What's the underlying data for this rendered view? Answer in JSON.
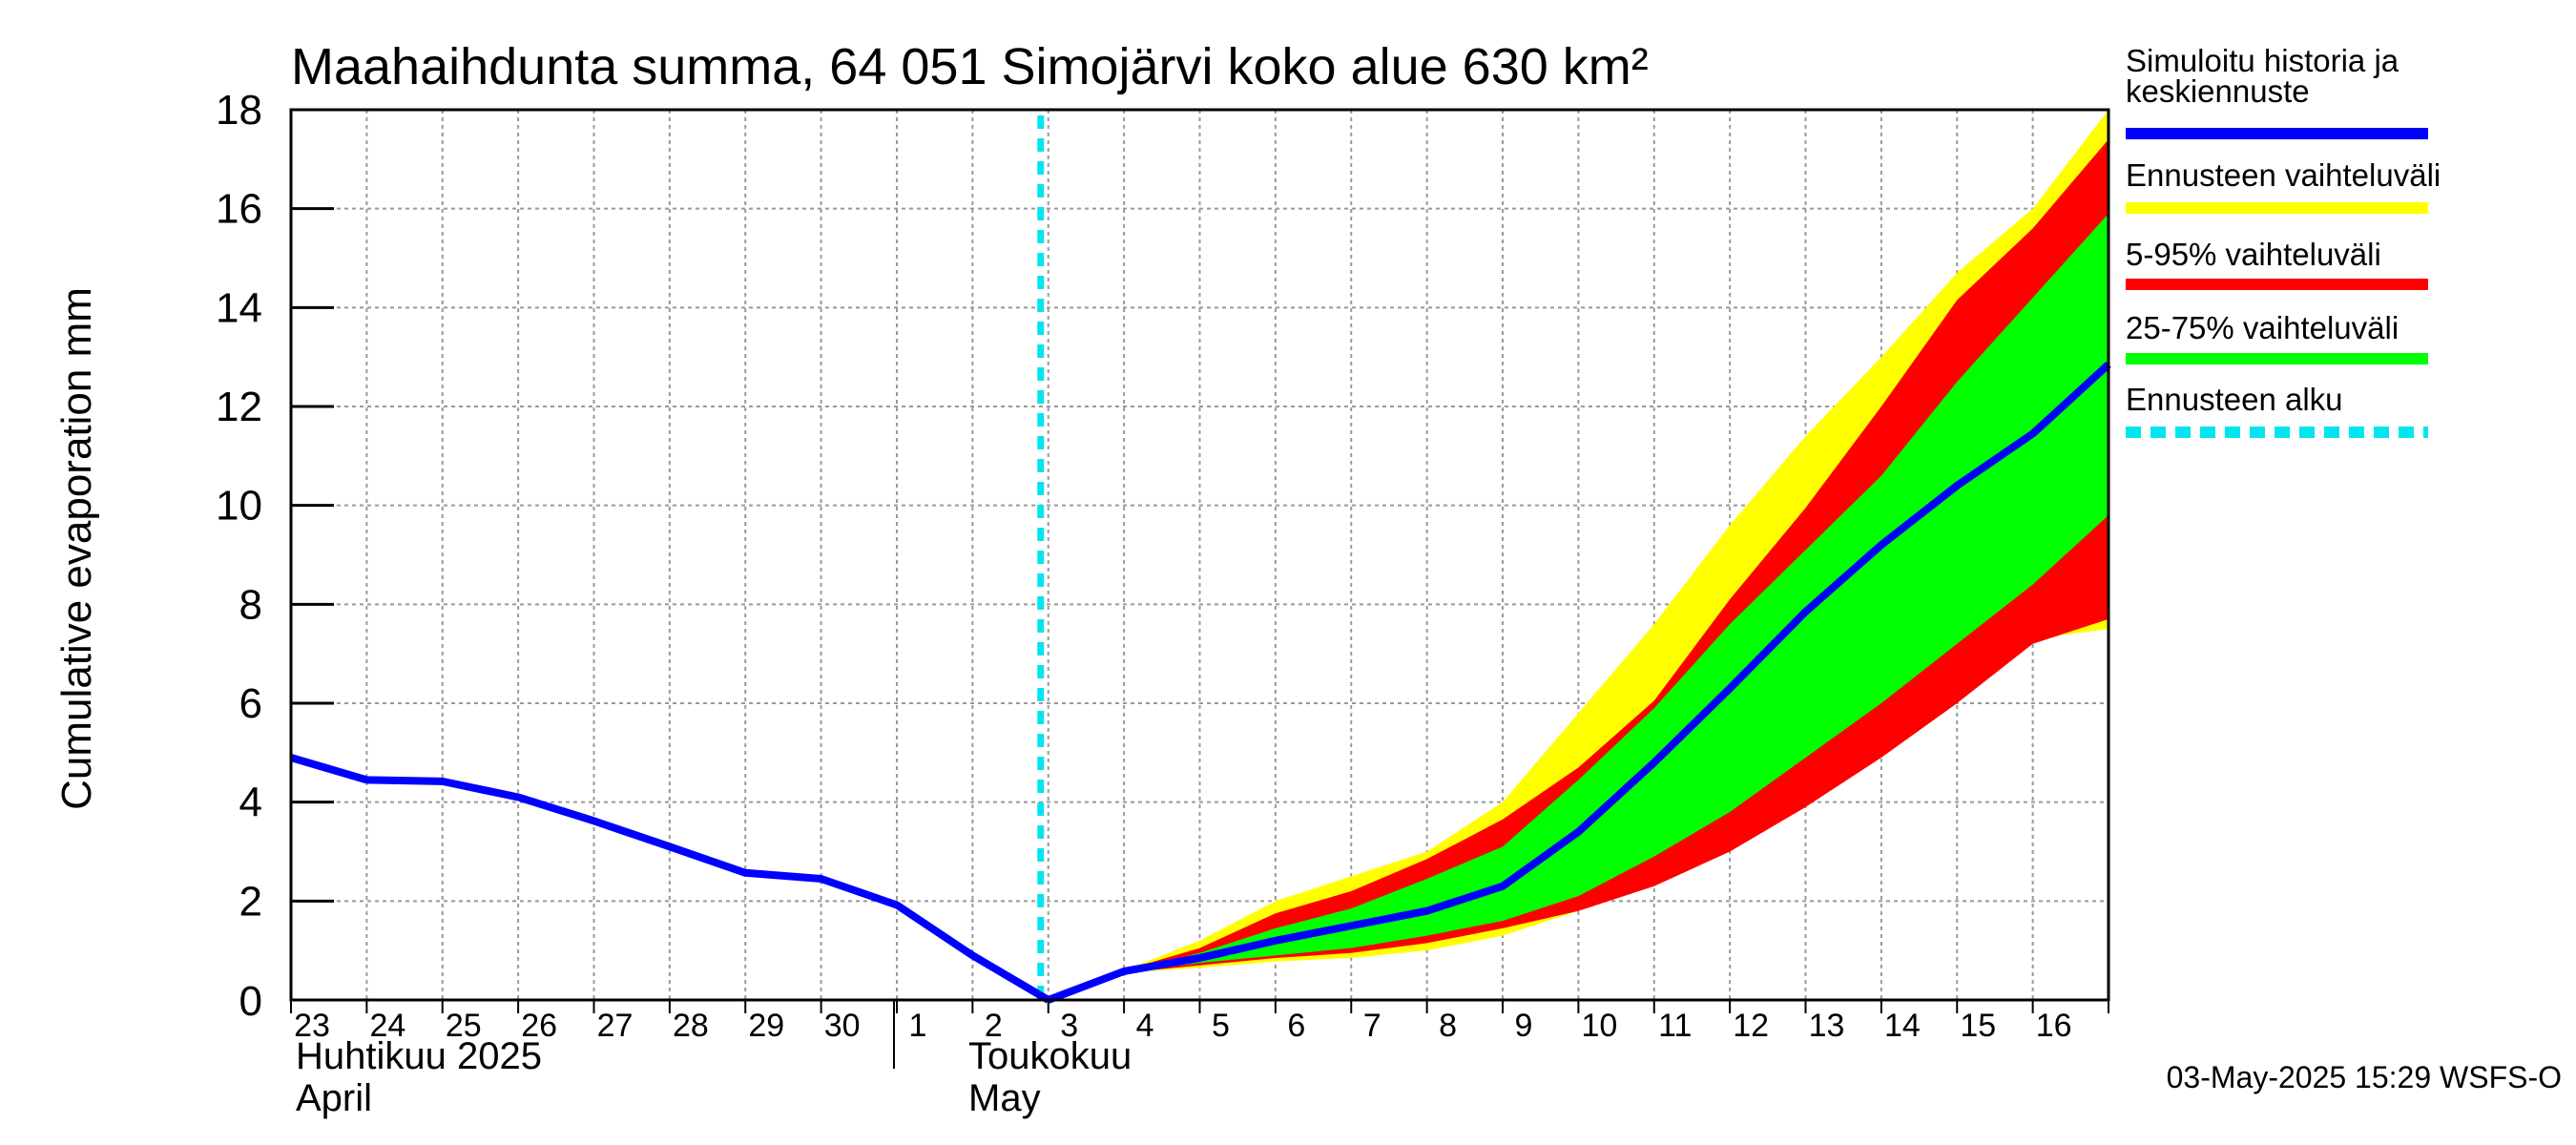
{
  "chart_data": {
    "type": "area",
    "title": "Maahaihdunta summa, 64 051 Simojärvi koko alue 630 km²",
    "ylabel": "Cumulative evaporation   mm",
    "ylim": [
      0,
      18
    ],
    "yticks": [
      0,
      2,
      4,
      6,
      8,
      10,
      12,
      14,
      16,
      18
    ],
    "x_day_range": [
      0,
      24
    ],
    "x_tick_labels": [
      "23",
      "24",
      "25",
      "26",
      "27",
      "28",
      "29",
      "30",
      "1",
      "2",
      "3",
      "4",
      "5",
      "6",
      "7",
      "8",
      "9",
      "10",
      "11",
      "12",
      "13",
      "14",
      "15",
      "16"
    ],
    "months": [
      {
        "line1": "Huhtikuu  2025",
        "line2": "April",
        "start_day": 0
      },
      {
        "line1": "Toukokuu",
        "line2": "May",
        "start_day": 8
      }
    ],
    "forecast_start_day": 10,
    "history": {
      "x": [
        0,
        1,
        2,
        3,
        4,
        5,
        6,
        7,
        8,
        9,
        10
      ],
      "y": [
        4.9,
        4.45,
        4.42,
        4.1,
        3.62,
        3.1,
        2.57,
        2.45,
        1.92,
        0.9,
        0.0
      ]
    },
    "forecast_x": [
      10,
      11,
      12,
      13,
      14,
      15,
      16,
      17,
      18,
      19,
      20,
      21,
      22,
      23,
      24
    ],
    "bands": {
      "full_range": {
        "low": [
          0.0,
          0.55,
          0.65,
          0.78,
          0.85,
          1.0,
          1.3,
          1.8,
          2.5,
          3.3,
          4.1,
          5.2,
          6.2,
          7.3,
          7.5
        ],
        "high": [
          0.0,
          0.6,
          1.2,
          2.0,
          2.5,
          3.0,
          4.0,
          5.8,
          7.6,
          9.6,
          11.4,
          13.0,
          14.7,
          16.0,
          18.0
        ]
      },
      "p5_95": {
        "low": [
          0.0,
          0.55,
          0.7,
          0.85,
          0.95,
          1.15,
          1.45,
          1.8,
          2.3,
          3.0,
          3.9,
          4.9,
          6.0,
          7.2,
          7.7
        ],
        "high": [
          0.0,
          0.6,
          1.05,
          1.75,
          2.2,
          2.85,
          3.65,
          4.7,
          6.05,
          8.1,
          9.95,
          12.0,
          14.15,
          15.6,
          17.4
        ]
      },
      "p25_75": {
        "low": [
          0.0,
          0.55,
          0.75,
          0.9,
          1.05,
          1.3,
          1.6,
          2.1,
          2.9,
          3.8,
          4.9,
          6.0,
          7.2,
          8.4,
          9.8
        ],
        "high": [
          0.0,
          0.58,
          0.95,
          1.45,
          1.85,
          2.45,
          3.1,
          4.45,
          5.9,
          7.6,
          9.1,
          10.6,
          12.5,
          14.2,
          15.9
        ]
      }
    },
    "median": [
      0.0,
      0.58,
      0.85,
      1.2,
      1.5,
      1.8,
      2.3,
      3.4,
      4.8,
      6.3,
      7.85,
      9.2,
      10.4,
      11.45,
      12.85
    ],
    "legend": [
      {
        "label": "Simuloitu historia ja\nkeskiennuste",
        "color": "#0000ff",
        "style": "solid"
      },
      {
        "label": "Ennusteen vaihteluväli",
        "color": "#ffff00",
        "style": "solid"
      },
      {
        "label": "5-95% vaihteluväli",
        "color": "#ff0000",
        "style": "solid"
      },
      {
        "label": "25-75% vaihteluväli",
        "color": "#00ff00",
        "style": "solid"
      },
      {
        "label": "Ennusteen alku",
        "color": "#00e5ee",
        "style": "dashed"
      }
    ],
    "colors": {
      "history": "#0000ff",
      "full_range": "#ffff00",
      "p5_95": "#ff0000",
      "p25_75": "#00ff00",
      "forecast_start": "#00e5ee",
      "grid": "#999999"
    }
  },
  "footer": {
    "timestamp": "03-May-2025 15:29 WSFS-O"
  }
}
